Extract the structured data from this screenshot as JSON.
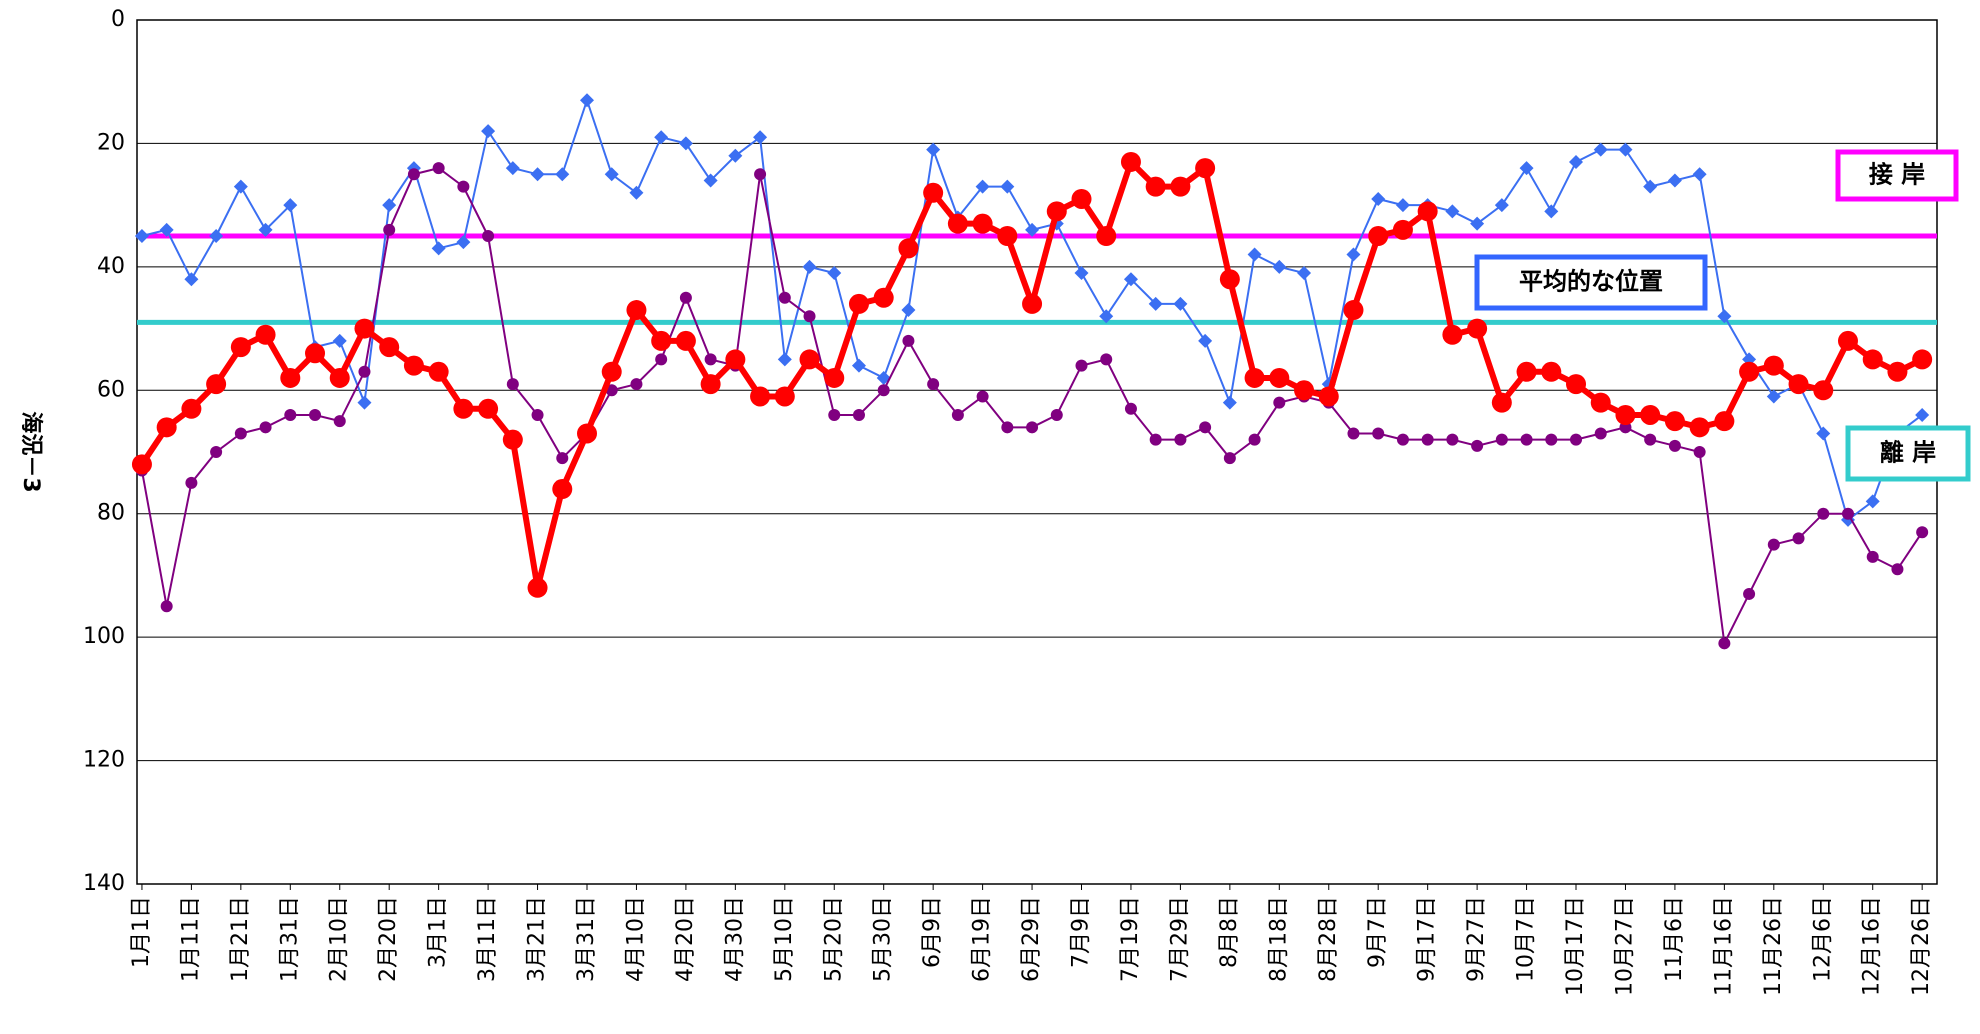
{
  "chart_data": {
    "type": "line",
    "ylabel": "海況－3",
    "ylim": [
      140,
      0
    ],
    "yticks": [
      0,
      20,
      40,
      60,
      80,
      100,
      120,
      140
    ],
    "grid": true,
    "xlim": [
      0,
      364
    ],
    "xticks": [
      {
        "value": 1,
        "label": "1月1日"
      },
      {
        "value": 11,
        "label": "1月11日"
      },
      {
        "value": 21,
        "label": "1月21日"
      },
      {
        "value": 31,
        "label": "1月31日"
      },
      {
        "value": 41,
        "label": "2月10日"
      },
      {
        "value": 51,
        "label": "2月20日"
      },
      {
        "value": 61,
        "label": "3月1日"
      },
      {
        "value": 71,
        "label": "3月11日"
      },
      {
        "value": 81,
        "label": "3月21日"
      },
      {
        "value": 91,
        "label": "3月31日"
      },
      {
        "value": 101,
        "label": "4月10日"
      },
      {
        "value": 111,
        "label": "4月20日"
      },
      {
        "value": 121,
        "label": "4月30日"
      },
      {
        "value": 131,
        "label": "5月10日"
      },
      {
        "value": 141,
        "label": "5月20日"
      },
      {
        "value": 151,
        "label": "5月30日"
      },
      {
        "value": 161,
        "label": "6月9日"
      },
      {
        "value": 171,
        "label": "6月19日"
      },
      {
        "value": 181,
        "label": "6月29日"
      },
      {
        "value": 191,
        "label": "7月9日"
      },
      {
        "value": 201,
        "label": "7月19日"
      },
      {
        "value": 211,
        "label": "7月29日"
      },
      {
        "value": 221,
        "label": "8月8日"
      },
      {
        "value": 231,
        "label": "8月18日"
      },
      {
        "value": 241,
        "label": "8月28日"
      },
      {
        "value": 251,
        "label": "9月7日"
      },
      {
        "value": 261,
        "label": "9月17日"
      },
      {
        "value": 271,
        "label": "9月27日"
      },
      {
        "value": 281,
        "label": "10月7日"
      },
      {
        "value": 291,
        "label": "10月17日"
      },
      {
        "value": 301,
        "label": "10月27日"
      },
      {
        "value": 311,
        "label": "11月6日"
      },
      {
        "value": 321,
        "label": "11月16日"
      },
      {
        "value": 331,
        "label": "11月26日"
      },
      {
        "value": 341,
        "label": "12月6日"
      },
      {
        "value": 351,
        "label": "12月16日"
      },
      {
        "value": 361,
        "label": "12月26日"
      }
    ],
    "x": [
      1,
      6,
      11,
      16,
      21,
      26,
      31,
      36,
      41,
      46,
      51,
      56,
      61,
      66,
      71,
      76,
      81,
      86,
      91,
      96,
      101,
      106,
      111,
      116,
      121,
      126,
      131,
      136,
      141,
      146,
      151,
      156,
      161,
      166,
      171,
      176,
      181,
      186,
      191,
      196,
      201,
      206,
      211,
      216,
      221,
      226,
      231,
      236,
      241,
      246,
      251,
      256,
      261,
      266,
      271,
      276,
      281,
      286,
      291,
      296,
      301,
      306,
      311,
      316,
      321,
      326,
      331,
      336,
      341,
      346,
      351,
      356,
      361
    ],
    "series": [
      {
        "color": "#3b6ff2",
        "marker": "diamond",
        "values": [
          35,
          34,
          42,
          35,
          27,
          34,
          30,
          53,
          52,
          62,
          30,
          24,
          37,
          36,
          18,
          24,
          25,
          25,
          13,
          25,
          28,
          19,
          20,
          26,
          22,
          19,
          55,
          40,
          41,
          56,
          58,
          47,
          21,
          32,
          27,
          27,
          34,
          33,
          41,
          48,
          42,
          46,
          46,
          52,
          62,
          38,
          40,
          41,
          59,
          38,
          29,
          30,
          30,
          31,
          33,
          30,
          24,
          31,
          23,
          21,
          21,
          27,
          26,
          25,
          48,
          55,
          61,
          59,
          67,
          81,
          78,
          67,
          64
        ]
      },
      {
        "color": "#800080",
        "marker": "circle",
        "values": [
          73,
          95,
          75,
          70,
          67,
          66,
          64,
          64,
          65,
          57,
          34,
          25,
          24,
          27,
          35,
          59,
          64,
          71,
          67,
          60,
          59,
          55,
          45,
          55,
          56,
          25,
          45,
          48,
          64,
          64,
          60,
          52,
          59,
          64,
          61,
          66,
          66,
          64,
          56,
          55,
          63,
          68,
          68,
          66,
          71,
          68,
          62,
          61,
          62,
          67,
          67,
          68,
          68,
          68,
          69,
          68,
          68,
          68,
          68,
          67,
          66,
          68,
          69,
          70,
          101,
          93,
          85,
          84,
          80,
          80,
          87,
          89,
          83
        ]
      },
      {
        "color": "#ff0000",
        "marker": "bigcircle",
        "values": [
          72,
          66,
          63,
          59,
          53,
          51,
          58,
          54,
          58,
          50,
          53,
          56,
          57,
          63,
          63,
          68,
          92,
          76,
          67,
          57,
          47,
          52,
          52,
          59,
          55,
          61,
          61,
          55,
          58,
          46,
          45,
          37,
          28,
          33,
          33,
          35,
          46,
          31,
          29,
          35,
          23,
          27,
          27,
          24,
          42,
          58,
          58,
          60,
          61,
          47,
          35,
          34,
          31,
          51,
          50,
          62,
          57,
          57,
          59,
          62,
          64,
          64,
          65,
          66,
          65,
          57,
          56,
          59,
          60,
          52,
          55,
          57,
          55
        ]
      }
    ],
    "reference_lines": [
      {
        "value": 35,
        "color": "#ff00ff"
      },
      {
        "value": 49,
        "color": "#33cccc"
      }
    ],
    "annotations": [
      {
        "text": "接 岸",
        "color": "#ff00ff"
      },
      {
        "text": "平均的な位置",
        "color": "#3366ff"
      },
      {
        "text": "離 岸",
        "color": "#33cccc"
      }
    ]
  }
}
